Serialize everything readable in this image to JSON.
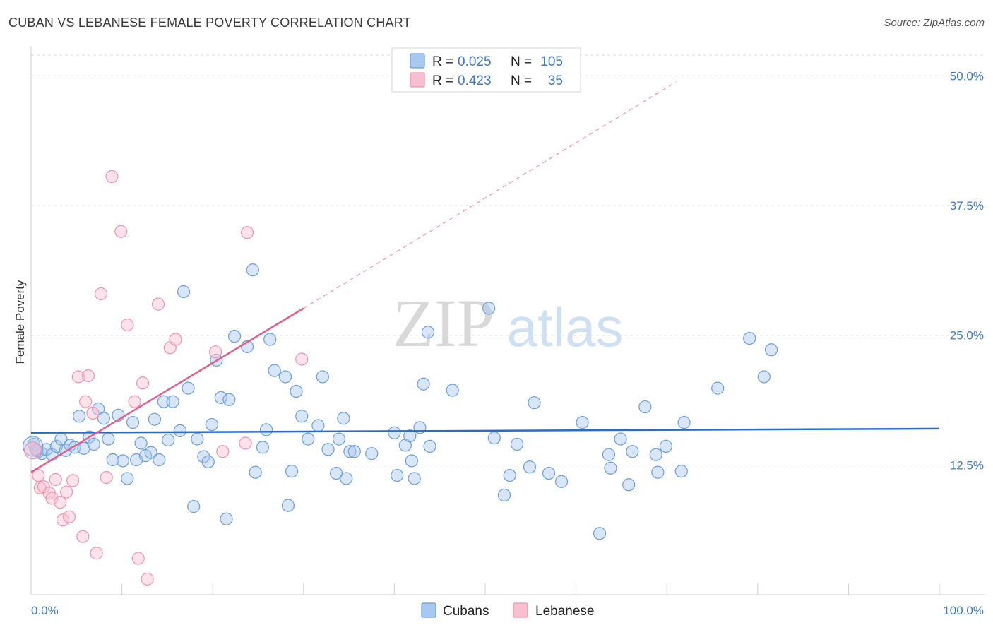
{
  "title": "CUBAN VS LEBANESE FEMALE POVERTY CORRELATION CHART",
  "source": "Source: ZipAtlas.com",
  "watermark": {
    "zip": "ZIP",
    "atlas": "atlas"
  },
  "colors": {
    "cubans_fill": "#a9c8f0",
    "cubans_stroke": "#6a9ede",
    "cubans_line": "#2a6cc7",
    "lebanese_fill": "#f8bfd0",
    "lebanese_stroke": "#ef93ae",
    "lebanese_line": "#e0608c",
    "grid": "#dcdcdc",
    "axis_text": "#3d78c6"
  },
  "legend": {
    "r_label": "R =",
    "n_label": "N =",
    "rows": [
      {
        "series": "cubans",
        "r": "0.025",
        "n": "105"
      },
      {
        "series": "lebanese",
        "r": "0.423",
        "n": "35"
      }
    ]
  },
  "chart_data": {
    "type": "scatter",
    "title": "CUBAN VS LEBANESE FEMALE POVERTY CORRELATION CHART",
    "ylabel": "Female Poverty",
    "xlabel": "",
    "xlim": [
      0,
      100
    ],
    "ylim": [
      0,
      52
    ],
    "x_tick_labels": {
      "left": "0.0%",
      "right": "100.0%"
    },
    "y_ticks": [
      {
        "value": 12.5,
        "label": "12.5%"
      },
      {
        "value": 25.0,
        "label": "25.0%"
      },
      {
        "value": 37.5,
        "label": "37.5%"
      },
      {
        "value": 50.0,
        "label": "50.0%"
      }
    ],
    "grid": true,
    "legend_position": "top-center",
    "series": [
      {
        "name": "Cubans",
        "trend": {
          "x0": 0,
          "y0": 15.6,
          "x1": 100,
          "y1": 16.0
        },
        "points": [
          [
            0.3,
            14.5
          ],
          [
            0.8,
            13.8
          ],
          [
            1.2,
            13.6
          ],
          [
            1.7,
            14.0
          ],
          [
            2.3,
            13.5
          ],
          [
            2.8,
            14.3
          ],
          [
            3.3,
            15.0
          ],
          [
            3.8,
            13.9
          ],
          [
            4.3,
            14.4
          ],
          [
            4.8,
            14.2
          ],
          [
            5.3,
            17.2
          ],
          [
            5.8,
            14.1
          ],
          [
            6.4,
            15.2
          ],
          [
            6.9,
            14.5
          ],
          [
            7.4,
            17.9
          ],
          [
            8.0,
            17.0
          ],
          [
            8.5,
            15.0
          ],
          [
            9.0,
            13.0
          ],
          [
            9.6,
            17.3
          ],
          [
            10.1,
            12.9
          ],
          [
            10.6,
            11.2
          ],
          [
            11.2,
            16.6
          ],
          [
            11.6,
            13.0
          ],
          [
            12.1,
            14.6
          ],
          [
            12.6,
            13.4
          ],
          [
            13.2,
            13.7
          ],
          [
            13.6,
            16.9
          ],
          [
            14.1,
            13.0
          ],
          [
            14.6,
            18.6
          ],
          [
            15.1,
            14.9
          ],
          [
            15.6,
            18.6
          ],
          [
            16.4,
            15.8
          ],
          [
            16.8,
            29.2
          ],
          [
            17.3,
            19.9
          ],
          [
            17.9,
            8.5
          ],
          [
            18.3,
            15.0
          ],
          [
            19.0,
            13.3
          ],
          [
            19.5,
            12.8
          ],
          [
            19.9,
            16.4
          ],
          [
            20.4,
            22.6
          ],
          [
            20.9,
            19.0
          ],
          [
            21.5,
            7.3
          ],
          [
            21.8,
            18.8
          ],
          [
            22.4,
            24.9
          ],
          [
            23.8,
            23.9
          ],
          [
            24.4,
            31.3
          ],
          [
            24.7,
            11.8
          ],
          [
            25.5,
            14.2
          ],
          [
            25.9,
            15.9
          ],
          [
            26.3,
            24.6
          ],
          [
            26.8,
            21.6
          ],
          [
            28.0,
            21.0
          ],
          [
            28.3,
            8.6
          ],
          [
            28.7,
            11.9
          ],
          [
            29.2,
            19.6
          ],
          [
            29.8,
            17.2
          ],
          [
            30.5,
            15.0
          ],
          [
            31.6,
            16.3
          ],
          [
            32.1,
            21.0
          ],
          [
            32.7,
            14.0
          ],
          [
            33.6,
            11.7
          ],
          [
            33.9,
            15.0
          ],
          [
            34.4,
            17.0
          ],
          [
            34.7,
            11.2
          ],
          [
            35.1,
            13.8
          ],
          [
            35.6,
            13.8
          ],
          [
            37.5,
            13.6
          ],
          [
            40.0,
            15.6
          ],
          [
            40.3,
            11.5
          ],
          [
            41.2,
            14.4
          ],
          [
            41.7,
            15.3
          ],
          [
            41.9,
            12.9
          ],
          [
            42.2,
            11.2
          ],
          [
            42.8,
            16.1
          ],
          [
            43.2,
            20.3
          ],
          [
            43.7,
            25.3
          ],
          [
            43.9,
            14.3
          ],
          [
            46.4,
            19.7
          ],
          [
            50.4,
            27.6
          ],
          [
            51.0,
            15.1
          ],
          [
            52.1,
            9.6
          ],
          [
            52.7,
            11.5
          ],
          [
            53.5,
            14.5
          ],
          [
            54.9,
            12.3
          ],
          [
            55.4,
            18.5
          ],
          [
            57.0,
            11.7
          ],
          [
            58.4,
            10.9
          ],
          [
            60.7,
            16.6
          ],
          [
            62.6,
            5.9
          ],
          [
            63.6,
            13.5
          ],
          [
            63.8,
            12.2
          ],
          [
            64.9,
            15.0
          ],
          [
            65.8,
            10.6
          ],
          [
            66.2,
            13.8
          ],
          [
            67.6,
            18.1
          ],
          [
            68.8,
            13.5
          ],
          [
            69.0,
            11.8
          ],
          [
            69.9,
            14.3
          ],
          [
            71.6,
            11.9
          ],
          [
            71.9,
            16.6
          ],
          [
            75.6,
            19.9
          ],
          [
            79.1,
            24.7
          ],
          [
            80.7,
            21.0
          ],
          [
            81.5,
            23.6
          ],
          [
            0.6,
            13.9
          ]
        ]
      },
      {
        "name": "Lebanese",
        "trend": {
          "x0": 0,
          "y0": 11.8,
          "x1": 30,
          "y1": 27.6
        },
        "trend_dashed_to": {
          "x": 71,
          "y": 49.4
        },
        "points": [
          [
            0.5,
            14.0
          ],
          [
            0.8,
            11.5
          ],
          [
            1.0,
            10.3
          ],
          [
            1.4,
            10.4
          ],
          [
            2.0,
            9.8
          ],
          [
            2.3,
            9.3
          ],
          [
            2.7,
            11.1
          ],
          [
            3.2,
            8.9
          ],
          [
            3.5,
            7.2
          ],
          [
            3.9,
            9.9
          ],
          [
            4.2,
            7.5
          ],
          [
            4.6,
            11.0
          ],
          [
            5.2,
            21.0
          ],
          [
            5.7,
            5.6
          ],
          [
            6.0,
            18.6
          ],
          [
            6.3,
            21.1
          ],
          [
            6.8,
            17.5
          ],
          [
            7.2,
            4.0
          ],
          [
            7.7,
            29.0
          ],
          [
            8.3,
            11.3
          ],
          [
            8.9,
            40.3
          ],
          [
            9.9,
            35.0
          ],
          [
            10.6,
            26.0
          ],
          [
            11.4,
            18.6
          ],
          [
            11.8,
            3.5
          ],
          [
            12.3,
            20.4
          ],
          [
            12.8,
            1.5
          ],
          [
            14.0,
            28.0
          ],
          [
            15.3,
            23.8
          ],
          [
            15.9,
            24.6
          ],
          [
            20.3,
            23.4
          ],
          [
            21.1,
            13.8
          ],
          [
            23.6,
            14.6
          ],
          [
            23.8,
            34.9
          ],
          [
            29.8,
            22.7
          ]
        ]
      }
    ]
  },
  "bottom_legend": [
    {
      "series": "cubans",
      "label": "Cubans"
    },
    {
      "series": "lebanese",
      "label": "Lebanese"
    }
  ]
}
